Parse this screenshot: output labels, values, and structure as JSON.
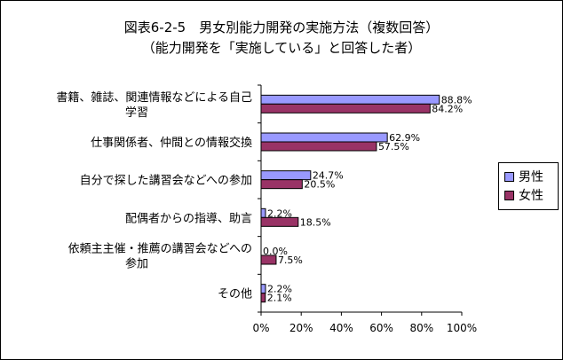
{
  "chart_data": {
    "type": "bar",
    "orientation": "horizontal",
    "title": "図表6-2-5　男女別能力開発の実施方法（複数回答）",
    "subtitle": "（能力開発を「実施している」と回答した者）",
    "categories": [
      [
        "書籍、雑誌、関連情報などによる自己",
        "学習"
      ],
      [
        "仕事関係者、仲間との情報交換"
      ],
      [
        "自分で探した講習会などへの参加"
      ],
      [
        "配偶者からの指導、助言"
      ],
      [
        "依頼主主催・推薦の講習会などへの",
        "参加"
      ],
      [
        "その他"
      ]
    ],
    "series": [
      {
        "name": "男性",
        "color": "#9999ff",
        "values": [
          88.8,
          62.9,
          24.7,
          2.2,
          0.0,
          2.2
        ],
        "labels": [
          "88.8%",
          "62.9%",
          "24.7%",
          "2.2%",
          "0.0%",
          "2.2%"
        ]
      },
      {
        "name": "女性",
        "color": "#993366",
        "values": [
          84.2,
          57.5,
          20.5,
          18.5,
          7.5,
          2.1
        ],
        "labels": [
          "84.2%",
          "57.5%",
          "20.5%",
          "18.5%",
          "7.5%",
          "2.1%"
        ]
      }
    ],
    "xlim": [
      0,
      100
    ],
    "xticks": [
      "0%",
      "20%",
      "40%",
      "60%",
      "80%",
      "100%"
    ],
    "legend_position": "right",
    "grid": false
  }
}
